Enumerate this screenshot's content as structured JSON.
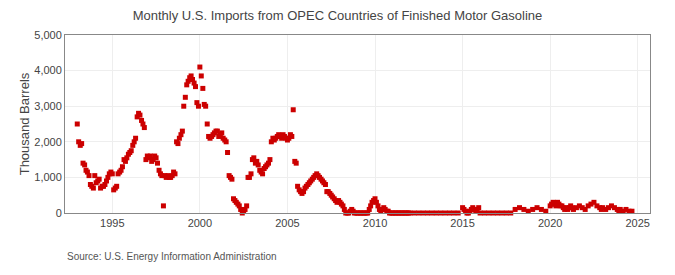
{
  "chart_data": {
    "type": "scatter",
    "title": "Monthly U.S. Imports from OPEC Countries of Finished Motor Gasoline",
    "ylabel": "Thousand Barrels",
    "annotations": [
      "Source: U.S. Energy Information Administration"
    ],
    "color": "#cc0000",
    "marker": "square",
    "grid": true,
    "xlim": [
      1992.3,
      2025.7
    ],
    "xticks": [
      1995,
      2000,
      2005,
      2010,
      2015,
      2020,
      2025
    ],
    "ylim": [
      0,
      5000
    ],
    "yticks": [
      0,
      {
        "value": 1000,
        "label": "1,000"
      },
      {
        "value": 2000,
        "label": "2,000"
      },
      {
        "value": 3000,
        "label": "3,000"
      },
      {
        "value": 4000,
        "label": "4,000"
      },
      {
        "value": 5000,
        "label": "5,000"
      }
    ],
    "x": [
      1993.0,
      1993.08,
      1993.17,
      1993.25,
      1993.33,
      1993.42,
      1993.5,
      1993.58,
      1993.67,
      1993.75,
      1993.83,
      1993.92,
      1994.0,
      1994.08,
      1994.17,
      1994.25,
      1994.33,
      1994.42,
      1994.5,
      1994.58,
      1994.67,
      1994.75,
      1994.83,
      1994.92,
      1995.0,
      1995.08,
      1995.17,
      1995.25,
      1995.33,
      1995.42,
      1995.5,
      1995.58,
      1995.67,
      1995.75,
      1995.83,
      1995.92,
      1996.0,
      1996.08,
      1996.17,
      1996.25,
      1996.33,
      1996.42,
      1996.5,
      1996.58,
      1996.67,
      1996.75,
      1996.83,
      1996.92,
      1997.0,
      1997.08,
      1997.17,
      1997.25,
      1997.33,
      1997.42,
      1997.5,
      1997.58,
      1997.67,
      1997.75,
      1997.83,
      1997.92,
      1998.0,
      1998.08,
      1998.17,
      1998.25,
      1998.33,
      1998.42,
      1998.5,
      1998.58,
      1998.67,
      1998.75,
      1998.83,
      1998.92,
      1999.0,
      1999.08,
      1999.17,
      1999.25,
      1999.33,
      1999.42,
      1999.5,
      1999.58,
      1999.67,
      1999.75,
      1999.83,
      1999.92,
      2000.0,
      2000.08,
      2000.17,
      2000.25,
      2000.33,
      2000.42,
      2000.5,
      2000.58,
      2000.67,
      2000.75,
      2000.83,
      2000.92,
      2001.0,
      2001.08,
      2001.17,
      2001.25,
      2001.33,
      2001.42,
      2001.5,
      2001.58,
      2001.67,
      2001.75,
      2001.83,
      2001.92,
      2002.0,
      2002.08,
      2002.17,
      2002.25,
      2002.33,
      2002.42,
      2002.5,
      2002.58,
      2002.67,
      2002.75,
      2002.83,
      2002.92,
      2003.0,
      2003.08,
      2003.17,
      2003.25,
      2003.33,
      2003.42,
      2003.5,
      2003.58,
      2003.67,
      2003.75,
      2003.83,
      2003.92,
      2004.0,
      2004.08,
      2004.17,
      2004.25,
      2004.33,
      2004.42,
      2004.5,
      2004.58,
      2004.67,
      2004.75,
      2004.83,
      2004.92,
      2005.0,
      2005.08,
      2005.17,
      2005.25,
      2005.33,
      2005.42,
      2005.5,
      2005.58,
      2005.67,
      2005.75,
      2005.83,
      2005.92,
      2006.0,
      2006.08,
      2006.17,
      2006.25,
      2006.33,
      2006.42,
      2006.5,
      2006.58,
      2006.67,
      2006.75,
      2006.83,
      2006.92,
      2007.0,
      2007.08,
      2007.17,
      2007.25,
      2007.33,
      2007.42,
      2007.5,
      2007.58,
      2007.67,
      2007.75,
      2007.83,
      2007.92,
      2008.0,
      2008.08,
      2008.17,
      2008.25,
      2008.33,
      2008.42,
      2008.5,
      2008.58,
      2008.67,
      2008.75,
      2008.83,
      2008.92,
      2009.0,
      2009.08,
      2009.17,
      2009.25,
      2009.33,
      2009.42,
      2009.5,
      2009.58,
      2009.67,
      2009.75,
      2009.83,
      2009.92,
      2010.0,
      2010.08,
      2010.17,
      2010.25,
      2010.33,
      2010.42,
      2010.5,
      2010.58,
      2010.67,
      2010.75,
      2010.83,
      2010.92,
      2011.0,
      2011.08,
      2011.17,
      2011.25,
      2011.33,
      2011.42,
      2011.5,
      2011.58,
      2011.67,
      2011.75,
      2011.83,
      2011.92,
      2012.0,
      2012.25,
      2012.5,
      2012.75,
      2013.0,
      2013.25,
      2013.5,
      2013.75,
      2014.0,
      2014.25,
      2014.5,
      2014.75,
      2015.0,
      2015.08,
      2015.17,
      2015.25,
      2015.33,
      2015.42,
      2015.5,
      2015.58,
      2015.67,
      2015.75,
      2015.83,
      2015.92,
      2016.0,
      2016.25,
      2016.5,
      2016.75,
      2017.0,
      2017.25,
      2017.5,
      2017.75,
      2018.0,
      2018.25,
      2018.5,
      2018.75,
      2019.0,
      2019.25,
      2019.5,
      2019.75,
      2020.0,
      2020.08,
      2020.17,
      2020.25,
      2020.33,
      2020.42,
      2020.5,
      2020.58,
      2020.67,
      2020.75,
      2020.83,
      2020.92,
      2021.0,
      2021.08,
      2021.17,
      2021.25,
      2021.33,
      2021.5,
      2021.67,
      2021.83,
      2022.0,
      2022.17,
      2022.33,
      2022.5,
      2022.67,
      2022.83,
      2022.92,
      2023.0,
      2023.17,
      2023.33,
      2023.5,
      2023.67,
      2023.83,
      2023.92,
      2024.0,
      2024.17,
      2024.33,
      2024.5,
      2024.67
    ],
    "values": [
      2500,
      2000,
      1900,
      1950,
      1400,
      1350,
      1200,
      1150,
      1050,
      800,
      750,
      700,
      1050,
      850,
      900,
      950,
      700,
      750,
      750,
      800,
      900,
      1000,
      1100,
      1150,
      1100,
      650,
      700,
      750,
      1100,
      1150,
      1200,
      1300,
      1500,
      1450,
      1550,
      1650,
      1700,
      1750,
      1900,
      2000,
      2100,
      2700,
      2800,
      2750,
      2600,
      2500,
      2400,
      1500,
      1600,
      1550,
      1600,
      1450,
      1500,
      1600,
      1550,
      1400,
      1200,
      1100,
      1050,
      200,
      1050,
      1000,
      1050,
      1000,
      1000,
      1050,
      1150,
      1100,
      2000,
      1950,
      2100,
      2200,
      2300,
      3000,
      3250,
      3600,
      3700,
      3800,
      3850,
      3750,
      3650,
      3550,
      3100,
      3000,
      4100,
      3850,
      3500,
      3050,
      3000,
      2500,
      2150,
      2100,
      2150,
      2200,
      2250,
      2300,
      2300,
      2150,
      2200,
      2250,
      2100,
      2050,
      2000,
      1700,
      1050,
      1000,
      950,
      400,
      350,
      300,
      250,
      200,
      100,
      0,
      50,
      100,
      200,
      1000,
      1000,
      1100,
      1500,
      1550,
      1400,
      1450,
      1350,
      1200,
      1150,
      1100,
      1250,
      1300,
      1350,
      1400,
      1500,
      2000,
      2100,
      2050,
      2100,
      2150,
      2200,
      2150,
      2100,
      2200,
      2150,
      2100,
      2050,
      2100,
      2200,
      2150,
      2900,
      1450,
      1400,
      750,
      650,
      600,
      550,
      600,
      700,
      750,
      800,
      850,
      900,
      950,
      1000,
      1050,
      1100,
      1050,
      1000,
      950,
      900,
      850,
      800,
      600,
      600,
      550,
      500,
      450,
      400,
      350,
      300,
      350,
      300,
      250,
      200,
      100,
      0,
      0,
      0,
      50,
      100,
      50,
      0,
      0,
      0,
      0,
      0,
      0,
      0,
      0,
      0,
      0,
      100,
      200,
      300,
      350,
      400,
      300,
      200,
      100,
      50,
      100,
      150,
      100,
      50,
      50,
      0,
      0,
      0,
      0,
      0,
      0,
      0,
      0,
      0,
      0,
      0,
      0,
      0,
      0,
      0,
      0,
      0,
      0,
      0,
      0,
      0,
      0,
      0,
      0,
      0,
      0,
      150,
      100,
      50,
      0,
      0,
      50,
      100,
      150,
      100,
      50,
      100,
      150,
      0,
      0,
      0,
      0,
      0,
      0,
      0,
      0,
      100,
      150,
      100,
      50,
      100,
      150,
      100,
      50,
      200,
      250,
      300,
      250,
      200,
      300,
      250,
      200,
      200,
      150,
      100,
      150,
      100,
      150,
      200,
      150,
      100,
      150,
      200,
      150,
      100,
      200,
      250,
      300,
      200,
      150,
      100,
      150,
      100,
      150,
      200,
      150,
      100,
      50,
      100,
      50,
      100,
      50,
      50
    ]
  }
}
